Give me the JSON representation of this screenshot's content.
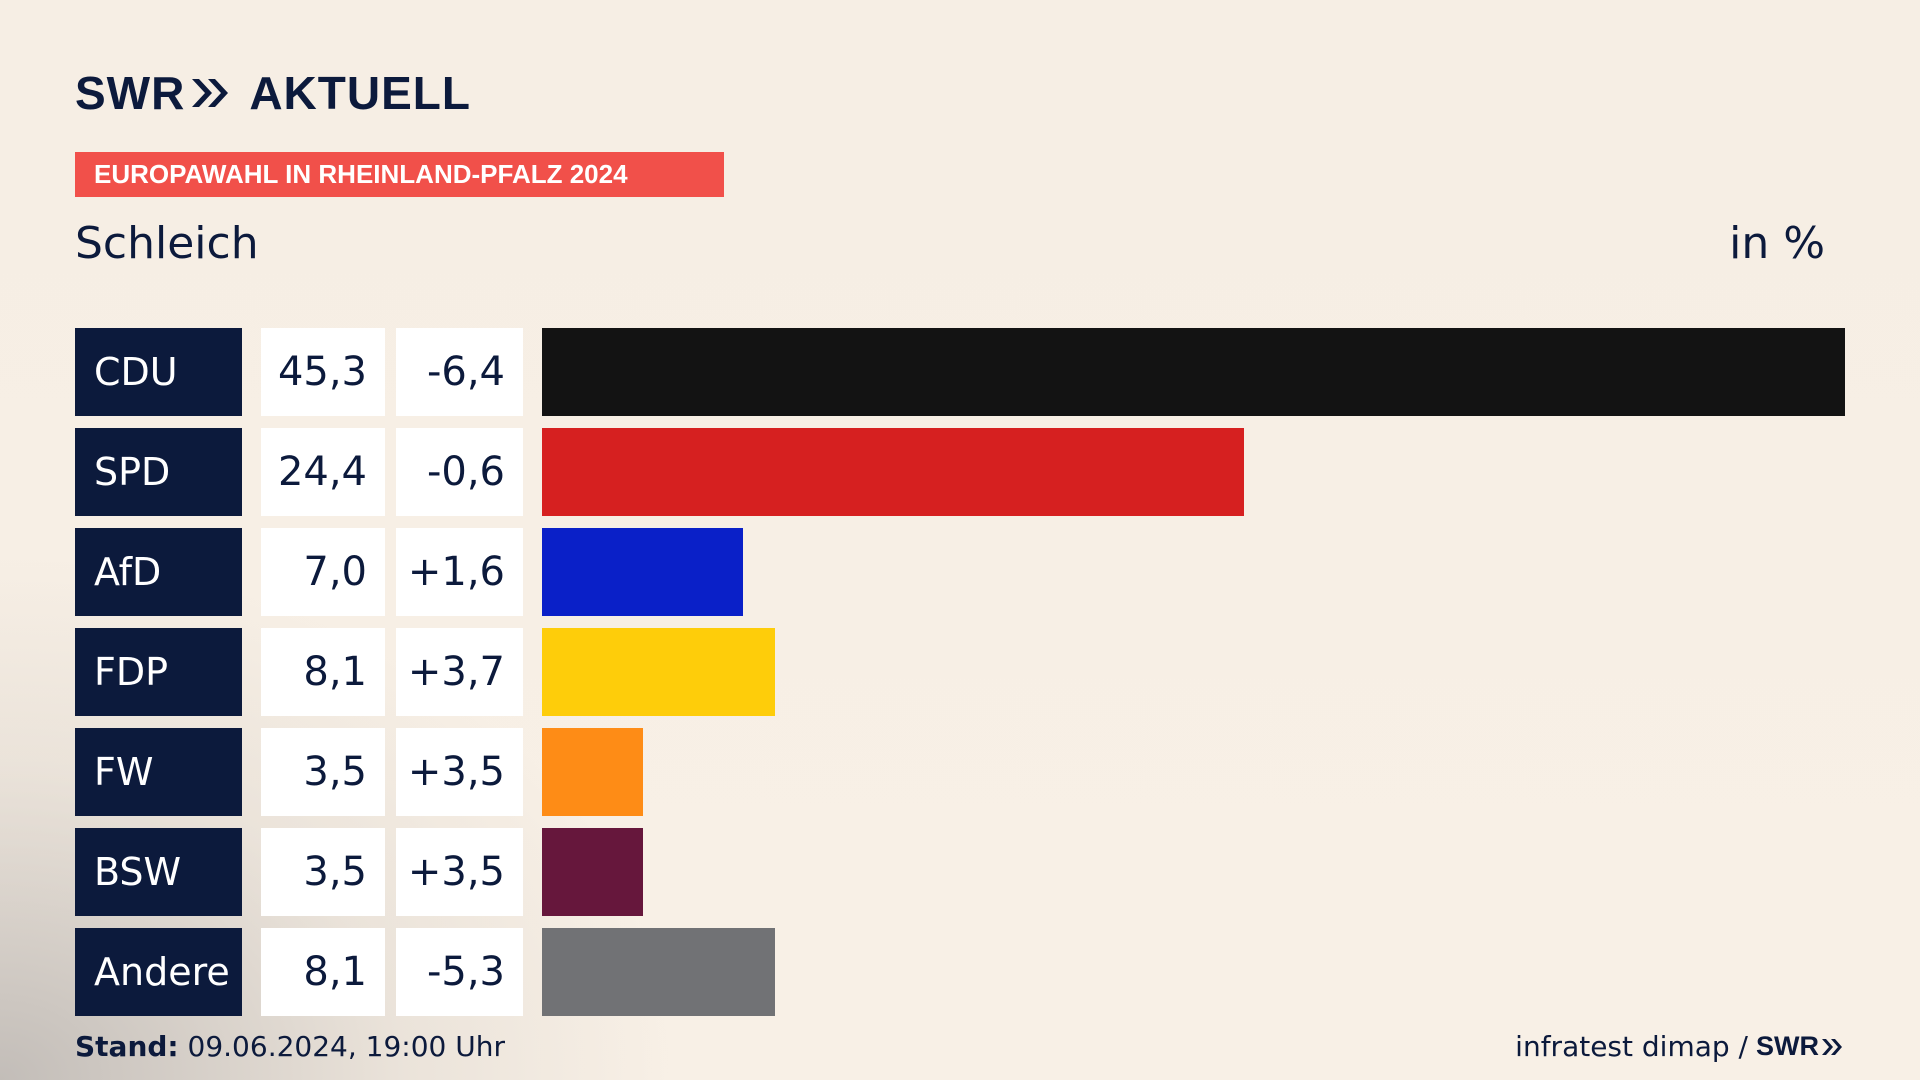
{
  "header": {
    "logo_swr": "SWR",
    "logo_text": "AKTUELL",
    "banner": "EUROPAWAHL IN RHEINLAND-PFALZ 2024"
  },
  "subtitle": "Schleich",
  "unit_label": "in %",
  "colors": {
    "navy": "#0c1a3c",
    "banner_red": "#f1504a"
  },
  "chart_data": {
    "type": "bar",
    "orientation": "horizontal",
    "categories": [
      "CDU",
      "SPD",
      "AfD",
      "FDP",
      "FW",
      "BSW",
      "Andere"
    ],
    "values": [
      45.3,
      24.4,
      7.0,
      8.1,
      3.5,
      3.5,
      8.1
    ],
    "value_labels": [
      "45,3",
      "24,4",
      "7,0",
      "8,1",
      "3,5",
      "3,5",
      "8,1"
    ],
    "changes": [
      -6.4,
      -0.6,
      1.6,
      3.7,
      3.5,
      3.5,
      -5.3
    ],
    "change_labels": [
      "-6,4",
      "-0,6",
      "+1,6",
      "+3,7",
      "+3,5",
      "+3,5",
      "-5,3"
    ],
    "bar_colors": [
      "#131313",
      "#d62020",
      "#0a20c8",
      "#fecd0a",
      "#fe8c16",
      "#66173c",
      "#717275"
    ],
    "title": "Schleich",
    "ylabel": "in %",
    "xlim": [
      0,
      45.3
    ],
    "grid": false
  },
  "footer": {
    "stand_label": "Stand:",
    "stand_value": "09.06.2024, 19:00 Uhr",
    "source": "infratest dimap /",
    "source_swr": "SWR"
  }
}
